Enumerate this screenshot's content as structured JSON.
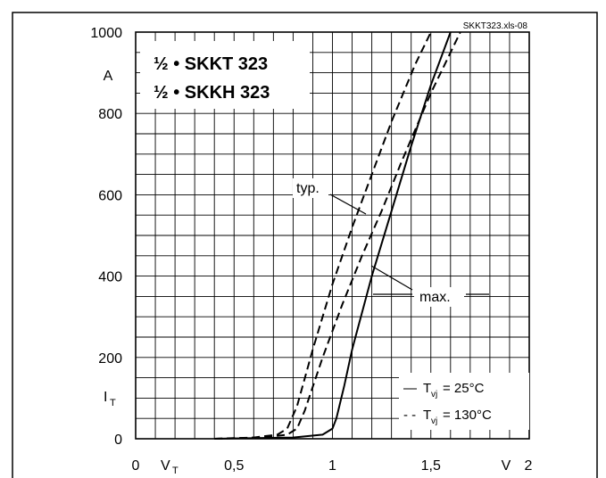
{
  "chart_data": {
    "type": "line",
    "source_label": "SKKT323.xls-08",
    "title_lines": [
      "½ • SKKT 323",
      "½ • SKKH 323"
    ],
    "xlim": [
      0,
      2
    ],
    "ylim": [
      0,
      1000
    ],
    "x_ticks": [
      {
        "value": 0,
        "label": "0"
      },
      {
        "value": 0.5,
        "label": "0,5"
      },
      {
        "value": 1,
        "label": "1"
      },
      {
        "value": 1.5,
        "label": "1,5"
      },
      {
        "value": 2,
        "label": "2"
      }
    ],
    "y_ticks": [
      {
        "value": 0,
        "label": "0"
      },
      {
        "value": 200,
        "label": "200"
      },
      {
        "value": 400,
        "label": "400"
      },
      {
        "value": 600,
        "label": "600"
      },
      {
        "value": 800,
        "label": "800"
      },
      {
        "value": 1000,
        "label": "1000"
      }
    ],
    "x_axis_label": {
      "main": "V",
      "sub": "T"
    },
    "x_unit": "V",
    "y_axis_label": {
      "main": "I",
      "sub": "T"
    },
    "y_unit": "A",
    "grid": true,
    "x_grid_step": 0.1,
    "y_grid_step": 50,
    "annotations": {
      "typ": "typ.",
      "max": "max."
    },
    "legend": {
      "placement": "bottom-right",
      "entries": [
        {
          "dash": "—",
          "symbol": "T",
          "sub": "vj",
          "value": " =  25°C"
        },
        {
          "dash": "- -",
          "symbol": "T",
          "sub": "vj",
          "value": " = 130°C"
        }
      ]
    },
    "series": [
      {
        "style": "solid",
        "points": [
          [
            0.4,
            0
          ],
          [
            0.8,
            3
          ],
          [
            0.95,
            10
          ],
          [
            1.0,
            25
          ],
          [
            1.02,
            50
          ],
          [
            1.06,
            130
          ],
          [
            1.1,
            220
          ],
          [
            1.2,
            400
          ],
          [
            1.3,
            560
          ],
          [
            1.4,
            720
          ],
          [
            1.5,
            870
          ],
          [
            1.6,
            1000
          ]
        ]
      },
      {
        "style": "dashed",
        "points": [
          [
            0.4,
            0
          ],
          [
            0.6,
            3
          ],
          [
            0.72,
            10
          ],
          [
            0.77,
            25
          ],
          [
            0.82,
            80
          ],
          [
            0.9,
            220
          ],
          [
            1.0,
            380
          ],
          [
            1.1,
            520
          ],
          [
            1.2,
            650
          ],
          [
            1.3,
            780
          ],
          [
            1.42,
            920
          ],
          [
            1.5,
            1000
          ]
        ]
      },
      {
        "style": "dashed",
        "points": [
          [
            0.4,
            0
          ],
          [
            0.65,
            3
          ],
          [
            0.77,
            10
          ],
          [
            0.82,
            25
          ],
          [
            0.86,
            70
          ],
          [
            0.95,
            200
          ],
          [
            1.05,
            330
          ],
          [
            1.15,
            450
          ],
          [
            1.25,
            560
          ],
          [
            1.35,
            680
          ],
          [
            1.5,
            850
          ],
          [
            1.65,
            1000
          ]
        ]
      }
    ]
  }
}
